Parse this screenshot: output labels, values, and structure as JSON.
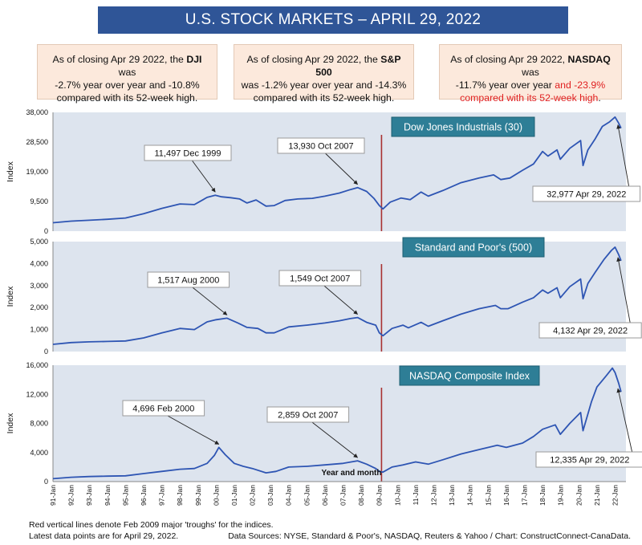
{
  "title": "U.S. STOCK MARKETS – APRIL 29, 2022",
  "summaries": [
    {
      "pre": "As of closing Apr 29 2022, the ",
      "index": "DJI",
      "post1": " was ",
      "yoy": "-2.7% year over year and -10.8%",
      "post2": "compared with its 52-week high."
    },
    {
      "pre": "As of closing Apr 29 2022, the ",
      "index": "S&P 500",
      "post1": "",
      "yoy": "was -1.2% year over year and -14.3%",
      "post2": "compared with its 52-week high."
    },
    {
      "pre": "As of closing Apr 29 2022, ",
      "index": "NASDAQ",
      "post1": " was ",
      "yoy": "-11.7% year over year ",
      "yoy_red": "and -23.9%",
      "post2_red": "compared with its 52-week high",
      "post2_tail": "."
    }
  ],
  "footer": {
    "note1": "Red vertical lines denote Feb 2009 major 'troughs' for the indices.",
    "note2": "Latest data points are for April 29, 2022.",
    "sources": "Data Sources:  NYSE, Standard & Poor's, NASDAQ, Reuters & Yahoo / Chart: ConstructConnect-CanaData."
  },
  "colors": {
    "panel_bg": "#dde4ee",
    "line": "#2e55b3",
    "trough": "#a83232",
    "label_bg": "#2e7e96",
    "title_bg": "#2f5597"
  },
  "chart_data": [
    {
      "type": "line",
      "title": "Dow Jones Industrials (30)",
      "ylabel": "Index",
      "ylim": [
        0,
        38000
      ],
      "yticks": [
        "0",
        "9,500",
        "19,000",
        "28,500",
        "38,000"
      ],
      "trough_year": 2009.12,
      "x": [
        1991.0,
        1992.0,
        1993.0,
        1994.0,
        1995.0,
        1996.0,
        1997.0,
        1998.0,
        1998.8,
        1999.5,
        1999.95,
        2000.3,
        2000.8,
        2001.3,
        2001.7,
        2002.2,
        2002.75,
        2003.2,
        2003.8,
        2004.5,
        2005.3,
        2006.0,
        2006.8,
        2007.4,
        2007.8,
        2008.3,
        2008.7,
        2009.0,
        2009.2,
        2009.6,
        2010.2,
        2010.7,
        2011.3,
        2011.7,
        2012.5,
        2013.5,
        2014.5,
        2015.3,
        2015.7,
        2016.2,
        2016.9,
        2017.5,
        2018.0,
        2018.3,
        2018.8,
        2018.98,
        2019.5,
        2020.1,
        2020.23,
        2020.5,
        2020.9,
        2021.3,
        2021.7,
        2022.0,
        2022.2,
        2022.33
      ],
      "values": [
        2700,
        3200,
        3500,
        3800,
        4200,
        5600,
        7300,
        8700,
        8500,
        10800,
        11497,
        11000,
        10700,
        10300,
        9000,
        10000,
        8000,
        8200,
        9800,
        10300,
        10500,
        11200,
        12200,
        13300,
        13930,
        12700,
        10500,
        8200,
        7100,
        9300,
        10600,
        10100,
        12500,
        11200,
        13000,
        15500,
        17000,
        18000,
        16500,
        17000,
        19500,
        21500,
        25500,
        24000,
        26000,
        23000,
        26500,
        29000,
        21000,
        26000,
        29500,
        33500,
        35000,
        36500,
        34500,
        32977
      ],
      "annotations": [
        {
          "label": "11,497 Dec 1999",
          "x": 1999.95,
          "y": 11497
        },
        {
          "label": "13,930 Oct 2007",
          "x": 2007.8,
          "y": 13930
        },
        {
          "label": "32,977 Apr 29, 2022",
          "x": 2022.33,
          "y": 32977
        }
      ]
    },
    {
      "type": "line",
      "title": "Standard and Poor's (500)",
      "ylabel": "Index",
      "ylim": [
        0,
        5000
      ],
      "yticks": [
        "0",
        "1,000",
        "2,000",
        "3,000",
        "4,000",
        "5,000"
      ],
      "trough_year": 2009.12,
      "x": [
        1991.0,
        1992.0,
        1993.0,
        1994.0,
        1995.0,
        1996.0,
        1997.0,
        1998.0,
        1998.8,
        1999.5,
        2000.0,
        2000.6,
        2001.2,
        2001.7,
        2002.3,
        2002.75,
        2003.2,
        2004.0,
        2005.0,
        2006.0,
        2006.8,
        2007.4,
        2007.8,
        2008.3,
        2008.8,
        2009.0,
        2009.2,
        2009.7,
        2010.3,
        2010.6,
        2011.3,
        2011.7,
        2012.5,
        2013.5,
        2014.5,
        2015.4,
        2015.7,
        2016.1,
        2016.9,
        2017.5,
        2018.0,
        2018.3,
        2018.8,
        2018.98,
        2019.5,
        2020.1,
        2020.23,
        2020.5,
        2020.9,
        2021.4,
        2021.8,
        2022.0,
        2022.2,
        2022.33
      ],
      "values": [
        330,
        410,
        440,
        460,
        480,
        620,
        850,
        1050,
        1000,
        1350,
        1450,
        1517,
        1300,
        1100,
        1050,
        850,
        850,
        1120,
        1200,
        1300,
        1400,
        1500,
        1549,
        1330,
        1200,
        850,
        720,
        1050,
        1200,
        1080,
        1330,
        1150,
        1400,
        1700,
        1950,
        2100,
        1950,
        1950,
        2250,
        2450,
        2800,
        2650,
        2900,
        2450,
        2950,
        3300,
        2400,
        3100,
        3600,
        4200,
        4600,
        4750,
        4400,
        4132
      ],
      "annotations": [
        {
          "label": "1,517 Aug 2000",
          "x": 2000.6,
          "y": 1517
        },
        {
          "label": "1,549 Oct 2007",
          "x": 2007.8,
          "y": 1549
        },
        {
          "label": "4,132 Apr 29, 2022",
          "x": 2022.33,
          "y": 4132
        }
      ]
    },
    {
      "type": "line",
      "title": "NASDAQ Composite Index",
      "ylabel": "Index",
      "ylim": [
        0,
        16000
      ],
      "yticks": [
        "0",
        "4,000",
        "8,000",
        "12,000",
        "16,000"
      ],
      "trough_year": 2009.12,
      "x": [
        1991.0,
        1992.0,
        1993.0,
        1994.0,
        1995.0,
        1996.0,
        1997.0,
        1998.0,
        1998.8,
        1999.5,
        1999.9,
        2000.15,
        2000.5,
        2001.0,
        2001.5,
        2002.0,
        2002.75,
        2003.3,
        2004.0,
        2005.0,
        2006.0,
        2007.0,
        2007.8,
        2008.3,
        2008.8,
        2009.0,
        2009.2,
        2009.7,
        2010.3,
        2011.0,
        2011.7,
        2012.5,
        2013.5,
        2014.5,
        2015.5,
        2016.0,
        2016.9,
        2017.5,
        2018.0,
        2018.7,
        2018.98,
        2019.5,
        2020.1,
        2020.23,
        2020.7,
        2021.0,
        2021.5,
        2021.85,
        2022.0,
        2022.2,
        2022.33
      ],
      "values": [
        400,
        600,
        700,
        750,
        800,
        1100,
        1400,
        1700,
        1800,
        2500,
        3600,
        4696,
        3700,
        2500,
        2100,
        1800,
        1200,
        1400,
        2000,
        2100,
        2300,
        2500,
        2859,
        2400,
        1800,
        1400,
        1300,
        2000,
        2300,
        2700,
        2400,
        3000,
        3800,
        4400,
        5000,
        4700,
        5300,
        6200,
        7200,
        7800,
        6500,
        8000,
        9500,
        7000,
        11000,
        13000,
        14500,
        15600,
        15000,
        13500,
        12335
      ],
      "annotations": [
        {
          "label": "4,696 Feb 2000",
          "x": 2000.15,
          "y": 4696
        },
        {
          "label": "2,859 Oct 2007",
          "x": 2007.8,
          "y": 2859
        },
        {
          "label": "12,335 Apr 29, 2022",
          "x": 2022.33,
          "y": 12335
        }
      ]
    }
  ],
  "x_axis": {
    "label": "Year and month",
    "ticks": [
      "91-Jan",
      "92-Jan",
      "93-Jan",
      "94-Jan",
      "95-Jan",
      "96-Jan",
      "97-Jan",
      "98-Jan",
      "99-Jan",
      "00-Jan",
      "01-Jan",
      "02-Jan",
      "03-Jan",
      "04-Jan",
      "05-Jan",
      "06-Jan",
      "07-Jan",
      "08-Jan",
      "09-Jan",
      "10-Jan",
      "11-Jan",
      "12-Jan",
      "13-Jan",
      "14-Jan",
      "15-Jan",
      "16-Jan",
      "17-Jan",
      "18-Jan",
      "19-Jan",
      "20-Jan",
      "21-Jan",
      "22-Jan"
    ],
    "start_year": 1991,
    "end_year": 2022.6
  }
}
